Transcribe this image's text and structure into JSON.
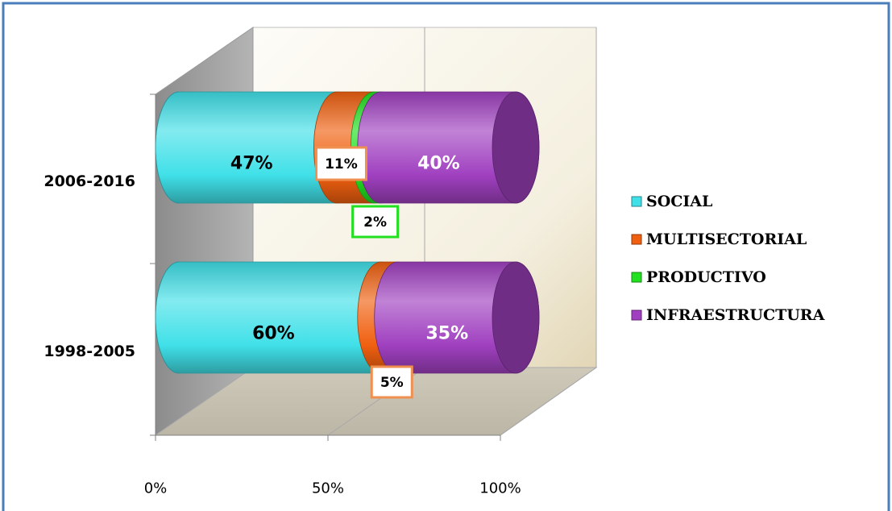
{
  "chart_data": {
    "type": "bar",
    "orientation": "horizontal",
    "stacked": "100%",
    "style": "3d-cylinder",
    "categories": [
      "1998-2005",
      "2006-2016"
    ],
    "series": [
      {
        "name": "SOCIAL",
        "values": [
          60,
          47
        ],
        "labels": [
          "60%",
          "47%"
        ],
        "color": "#40e0e8"
      },
      {
        "name": "MULTISECTORIAL",
        "values": [
          5,
          11
        ],
        "labels": [
          "5%",
          "11%"
        ],
        "color": "#f06010"
      },
      {
        "name": "PRODUCTIVO",
        "values": [
          0,
          2
        ],
        "labels": [
          "",
          "2%"
        ],
        "color": "#20e020"
      },
      {
        "name": "INFRAESTRUCTURA",
        "values": [
          35,
          40
        ],
        "labels": [
          "35%",
          "40%"
        ],
        "color": "#a040c0"
      }
    ],
    "x_ticks": [
      "0%",
      "50%",
      "100%"
    ],
    "xlim": [
      0,
      100
    ],
    "title": "",
    "xlabel": "",
    "ylabel": "",
    "grid": true,
    "legend": "right"
  }
}
